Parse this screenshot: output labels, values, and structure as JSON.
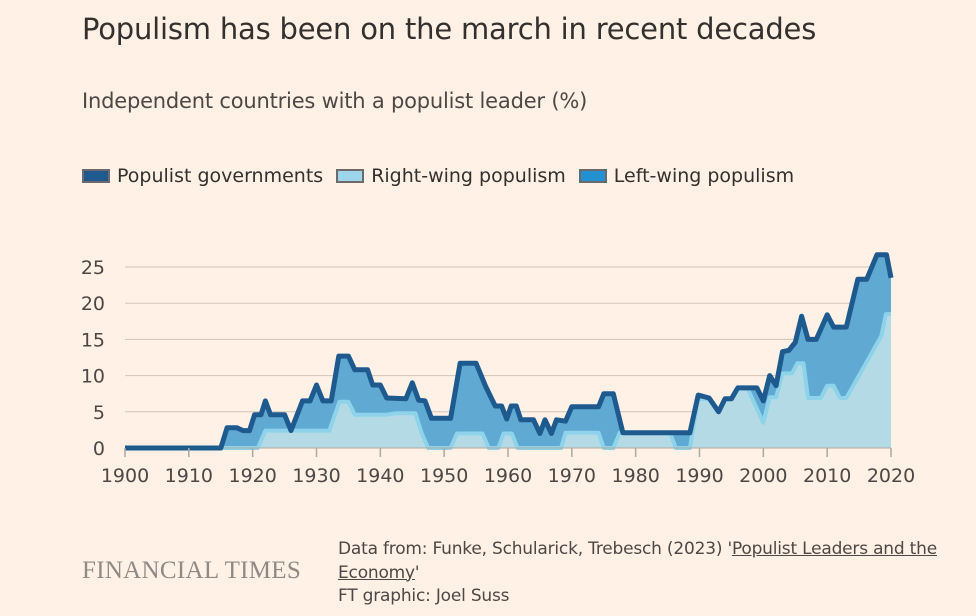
{
  "header": {
    "title": "Populism has been on the march in recent decades",
    "subtitle": "Independent countries with a populist leader (%)"
  },
  "legend": [
    {
      "label": "Populist governments",
      "color": "#1f5a8f"
    },
    {
      "label": "Right-wing populism",
      "color": "#9dd6ea"
    },
    {
      "label": "Left-wing populism",
      "color": "#2590d0"
    }
  ],
  "colors": {
    "background": "#fff1e5",
    "populist_line": "#1f5a8f",
    "left_fill": "#5fa9d2",
    "right_fill": "#b4dbe5",
    "right_outline": "#8ed3e9",
    "grid": "#cfc5bb",
    "axis": "#b0a89f"
  },
  "footer": {
    "logo": "FINANCIAL TIMES",
    "source_prefix": "Data from: Funke, Schularick, Trebesch (2023) '",
    "source_link": "Populist Leaders and the Economy",
    "source_suffix": "'",
    "credit": "FT graphic: Joel Suss"
  },
  "chart_data": {
    "type": "area",
    "title": "Independent countries with a populist leader (%)",
    "xlabel": "",
    "ylabel": "",
    "xlim": [
      1900,
      2020
    ],
    "ylim": [
      0,
      25
    ],
    "x_ticks": [
      1900,
      1910,
      1920,
      1930,
      1940,
      1950,
      1960,
      1970,
      1980,
      1990,
      2000,
      2010,
      2020
    ],
    "y_ticks": [
      0,
      5,
      10,
      15,
      20,
      25
    ],
    "grid": true,
    "legend_position": "top-left",
    "series": [
      {
        "name": "Populist governments",
        "points": [
          [
            1900,
            0
          ],
          [
            1915,
            0
          ],
          [
            1916,
            2.8
          ],
          [
            1917.5,
            2.8
          ],
          [
            1918.5,
            2.4
          ],
          [
            1919.5,
            2.4
          ],
          [
            1920.3,
            4.6
          ],
          [
            1921.3,
            4.6
          ],
          [
            1922,
            6.5
          ],
          [
            1922.8,
            4.6
          ],
          [
            1925,
            4.6
          ],
          [
            1926,
            2.4
          ],
          [
            1927.8,
            6.5
          ],
          [
            1929,
            6.5
          ],
          [
            1930,
            8.7
          ],
          [
            1931,
            6.5
          ],
          [
            1932.3,
            6.5
          ],
          [
            1933.5,
            12.7
          ],
          [
            1935,
            12.7
          ],
          [
            1936,
            10.8
          ],
          [
            1938,
            10.8
          ],
          [
            1938.8,
            8.7
          ],
          [
            1940,
            8.7
          ],
          [
            1941,
            6.9
          ],
          [
            1944,
            6.8
          ],
          [
            1945,
            9
          ],
          [
            1946,
            6.6
          ],
          [
            1947,
            6.5
          ],
          [
            1948,
            4.1
          ],
          [
            1951,
            4.1
          ],
          [
            1952.5,
            11.7
          ],
          [
            1955,
            11.7
          ],
          [
            1956.5,
            8.5
          ],
          [
            1958,
            5.8
          ],
          [
            1959,
            5.8
          ],
          [
            1959.8,
            4
          ],
          [
            1960.5,
            5.8
          ],
          [
            1961.3,
            5.8
          ],
          [
            1962,
            3.9
          ],
          [
            1964,
            3.9
          ],
          [
            1965,
            2
          ],
          [
            1965.8,
            3.9
          ],
          [
            1966.8,
            2
          ],
          [
            1967.6,
            3.9
          ],
          [
            1969,
            3.7
          ],
          [
            1970,
            5.7
          ],
          [
            1974.2,
            5.7
          ],
          [
            1975,
            7.5
          ],
          [
            1976.5,
            7.5
          ],
          [
            1978,
            2.1
          ],
          [
            1988.5,
            2.1
          ],
          [
            1989.8,
            7.3
          ],
          [
            1991.5,
            6.9
          ],
          [
            1993,
            5
          ],
          [
            1994,
            6.8
          ],
          [
            1995,
            6.8
          ],
          [
            1996,
            8.3
          ],
          [
            1999,
            8.3
          ],
          [
            2000,
            6.5
          ],
          [
            2001,
            10
          ],
          [
            2002,
            8.6
          ],
          [
            2003,
            13.3
          ],
          [
            2004,
            13.5
          ],
          [
            2005,
            14.6
          ],
          [
            2006,
            18.2
          ],
          [
            2007,
            15
          ],
          [
            2008.3,
            15
          ],
          [
            2010,
            18.4
          ],
          [
            2011,
            16.7
          ],
          [
            2013,
            16.7
          ],
          [
            2014.8,
            23.3
          ],
          [
            2016.2,
            23.3
          ],
          [
            2017.8,
            26.7
          ],
          [
            2019.3,
            26.7
          ],
          [
            2020,
            23.5
          ]
        ]
      },
      {
        "name": "Right-wing populism",
        "points": [
          [
            1900,
            0
          ],
          [
            1920.8,
            0
          ],
          [
            1922,
            2.4
          ],
          [
            1932,
            2.4
          ],
          [
            1933.6,
            6.4
          ],
          [
            1935,
            6.4
          ],
          [
            1936,
            4.6
          ],
          [
            1941,
            4.6
          ],
          [
            1942.5,
            4.8
          ],
          [
            1945.5,
            4.8
          ],
          [
            1946.5,
            2
          ],
          [
            1947.5,
            0
          ],
          [
            1951,
            0
          ],
          [
            1952,
            2
          ],
          [
            1956,
            2
          ],
          [
            1957,
            0
          ],
          [
            1958.5,
            0
          ],
          [
            1959.3,
            2
          ],
          [
            1960.6,
            2
          ],
          [
            1961.5,
            0
          ],
          [
            1968.3,
            0
          ],
          [
            1969,
            2.1
          ],
          [
            1974.2,
            2.1
          ],
          [
            1975,
            0
          ],
          [
            1976.5,
            0
          ],
          [
            1977.5,
            2.1
          ],
          [
            1985.4,
            2.1
          ],
          [
            1986.3,
            0
          ],
          [
            1988.5,
            0
          ],
          [
            1989.8,
            6.8
          ],
          [
            1991.5,
            6.7
          ],
          [
            1993,
            5
          ],
          [
            1994,
            6.8
          ],
          [
            1995,
            6.8
          ],
          [
            1996,
            8.3
          ],
          [
            1997.5,
            8.3
          ],
          [
            2000,
            3.5
          ],
          [
            2001,
            7
          ],
          [
            2002,
            7
          ],
          [
            2003,
            10.3
          ],
          [
            2004.5,
            10.3
          ],
          [
            2005.3,
            11.7
          ],
          [
            2006.3,
            11.7
          ],
          [
            2007,
            6.9
          ],
          [
            2009,
            6.9
          ],
          [
            2010,
            8.6
          ],
          [
            2011,
            8.6
          ],
          [
            2012,
            6.9
          ],
          [
            2013,
            6.9
          ],
          [
            2018.5,
            15.5
          ],
          [
            2019.2,
            18.5
          ],
          [
            2020,
            18.5
          ]
        ]
      },
      {
        "name": "Left-wing populism",
        "note": "Shown as the band between Right-wing populism and Populist governments"
      }
    ]
  }
}
